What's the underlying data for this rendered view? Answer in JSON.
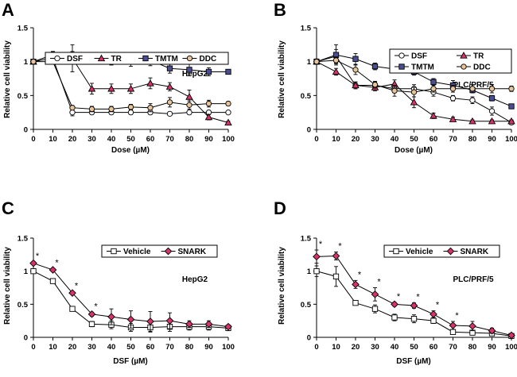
{
  "chart_data": [
    {
      "panel": "A",
      "type": "line",
      "xlabel": "Dose (µM)",
      "ylabel": "Relative cell viability",
      "cell_label": "HepG2",
      "legend_layout": "row",
      "xlim": [
        0,
        100
      ],
      "ylim": [
        0,
        1.5
      ],
      "x_ticks": [
        0,
        10,
        20,
        30,
        40,
        50,
        60,
        70,
        80,
        90,
        100
      ],
      "y_ticks": [
        0,
        0.5,
        1,
        1.5
      ],
      "y_tick_labels": [
        "0",
        "0.5",
        "1",
        "1.5"
      ],
      "x": [
        0,
        10,
        20,
        30,
        40,
        50,
        60,
        70,
        80,
        90,
        100
      ],
      "series": [
        {
          "name": "DSF",
          "marker": "circle",
          "fill": "#ffffff",
          "values": [
            1.0,
            1.05,
            0.25,
            0.25,
            0.25,
            0.25,
            0.25,
            0.23,
            0.25,
            0.25,
            0.25
          ],
          "errors": [
            0.02,
            0.03,
            0.05,
            0.03,
            0.03,
            0.03,
            0.03,
            0.02,
            0.03,
            0.03,
            0.02
          ]
        },
        {
          "name": "TR",
          "marker": "triangle",
          "fill": "#d6336c",
          "values": [
            1.0,
            1.1,
            1.05,
            0.6,
            0.6,
            0.6,
            0.68,
            0.63,
            0.48,
            0.18,
            0.1
          ],
          "errors": [
            0.03,
            0.05,
            0.2,
            0.08,
            0.07,
            0.07,
            0.08,
            0.06,
            0.1,
            0.04,
            0.02
          ]
        },
        {
          "name": "TMTM",
          "marker": "square",
          "fill": "#4b4e8f",
          "values": [
            1.0,
            1.1,
            1.1,
            1.05,
            1.0,
            1.0,
            1.02,
            0.9,
            0.88,
            0.85,
            0.85
          ],
          "errors": [
            0.03,
            0.05,
            0.05,
            0.06,
            0.05,
            0.07,
            0.08,
            0.07,
            0.09,
            0.06,
            0.02
          ]
        },
        {
          "name": "DDC",
          "marker": "circle",
          "fill": "#e8c49a",
          "values": [
            1.0,
            1.0,
            0.32,
            0.3,
            0.3,
            0.33,
            0.32,
            0.4,
            0.36,
            0.38,
            0.38
          ],
          "errors": [
            0.02,
            0.03,
            0.03,
            0.04,
            0.04,
            0.04,
            0.06,
            0.07,
            0.06,
            0.05,
            0.03
          ]
        }
      ]
    },
    {
      "panel": "B",
      "type": "line",
      "xlabel": "Dose (µM)",
      "ylabel": "Relative cell viability",
      "cell_label": "PLC/PRF/5",
      "legend_layout": "grid2",
      "xlim": [
        0,
        100
      ],
      "ylim": [
        0,
        1.5
      ],
      "x_ticks": [
        0,
        10,
        20,
        30,
        40,
        50,
        60,
        70,
        80,
        90,
        100
      ],
      "y_ticks": [
        0,
        0.5,
        1,
        1.5
      ],
      "y_tick_labels": [
        "0",
        "0.5",
        "1",
        "1.5"
      ],
      "x": [
        0,
        10,
        20,
        30,
        40,
        50,
        60,
        70,
        80,
        90,
        100
      ],
      "series": [
        {
          "name": "DSF",
          "marker": "circle",
          "fill": "#ffffff",
          "values": [
            1.0,
            1.08,
            0.65,
            0.65,
            0.6,
            0.6,
            0.55,
            0.46,
            0.43,
            0.27,
            0.1
          ],
          "errors": [
            0.03,
            0.1,
            0.05,
            0.05,
            0.06,
            0.06,
            0.06,
            0.04,
            0.05,
            0.06,
            0.03
          ]
        },
        {
          "name": "TR",
          "marker": "triangle",
          "fill": "#d6336c",
          "values": [
            1.0,
            0.85,
            0.65,
            0.62,
            0.67,
            0.4,
            0.2,
            0.15,
            0.12,
            0.12,
            0.12
          ],
          "errors": [
            0.04,
            0.05,
            0.05,
            0.05,
            0.06,
            0.08,
            0.04,
            0.03,
            0.02,
            0.02,
            0.02
          ]
        },
        {
          "name": "TMTM",
          "marker": "square",
          "fill": "#4b4e8f",
          "values": [
            1.0,
            1.1,
            1.04,
            0.93,
            0.89,
            0.85,
            0.7,
            0.65,
            0.58,
            0.46,
            0.34
          ],
          "errors": [
            0.03,
            0.15,
            0.08,
            0.05,
            0.05,
            0.05,
            0.05,
            0.07,
            0.04,
            0.04,
            0.03
          ]
        },
        {
          "name": "DDC",
          "marker": "circle",
          "fill": "#e8c49a",
          "values": [
            1.0,
            1.02,
            0.88,
            0.66,
            0.57,
            0.55,
            0.6,
            0.6,
            0.6,
            0.6,
            0.6
          ],
          "errors": [
            0.03,
            0.05,
            0.07,
            0.05,
            0.08,
            0.07,
            0.05,
            0.05,
            0.06,
            0.06,
            0.04
          ]
        }
      ]
    },
    {
      "panel": "C",
      "type": "line",
      "xlabel": "DSF (µM)",
      "ylabel": "Relative cell viability",
      "cell_label": "HepG2",
      "legend_layout": "row",
      "xlim": [
        0,
        100
      ],
      "ylim": [
        0,
        1.5
      ],
      "x_ticks": [
        0,
        10,
        20,
        30,
        40,
        50,
        60,
        70,
        80,
        90,
        100
      ],
      "y_ticks": [
        0,
        0.5,
        1,
        1.5
      ],
      "y_tick_labels": [
        "0",
        "0.5",
        "1",
        "1.5"
      ],
      "x": [
        0,
        10,
        20,
        30,
        40,
        50,
        60,
        70,
        80,
        90,
        100
      ],
      "significance_marker": "*",
      "significance_x": [
        0,
        10,
        20,
        30
      ],
      "series": [
        {
          "name": "Vehicle",
          "marker": "square",
          "fill": "#ffffff",
          "values": [
            1.0,
            0.85,
            0.43,
            0.2,
            0.19,
            0.15,
            0.15,
            0.16,
            0.16,
            0.16,
            0.14
          ],
          "errors": [
            0.02,
            0.02,
            0.02,
            0.04,
            0.06,
            0.06,
            0.07,
            0.07,
            0.05,
            0.05,
            0.04
          ]
        },
        {
          "name": "SNARK",
          "marker": "diamond",
          "fill": "#d6336c",
          "values": [
            1.12,
            1.02,
            0.67,
            0.35,
            0.31,
            0.27,
            0.24,
            0.25,
            0.2,
            0.2,
            0.16
          ],
          "errors": [
            0.02,
            0.02,
            0.02,
            0.03,
            0.12,
            0.13,
            0.15,
            0.12,
            0.05,
            0.05,
            0.03
          ]
        }
      ]
    },
    {
      "panel": "D",
      "type": "line",
      "xlabel": "DSF (µM)",
      "ylabel": "Relative cell viability",
      "cell_label": "PLC/PRF/5",
      "legend_layout": "row",
      "xlim": [
        0,
        100
      ],
      "ylim": [
        0,
        1.5
      ],
      "x_ticks": [
        0,
        10,
        20,
        30,
        40,
        50,
        60,
        70,
        80,
        90,
        100
      ],
      "y_ticks": [
        0,
        0.5,
        1,
        1.5
      ],
      "y_tick_labels": [
        "0",
        "0.5",
        "1",
        "1.5"
      ],
      "x": [
        0,
        10,
        20,
        30,
        40,
        50,
        60,
        70,
        80,
        90,
        100
      ],
      "significance_marker": "*",
      "significance_x": [
        0,
        10,
        20,
        30,
        40,
        50,
        60,
        70
      ],
      "series": [
        {
          "name": "Vehicle",
          "marker": "square",
          "fill": "#ffffff",
          "values": [
            1.0,
            0.92,
            0.52,
            0.43,
            0.3,
            0.28,
            0.25,
            0.08,
            0.07,
            0.06,
            0.02
          ],
          "errors": [
            0.08,
            0.15,
            0.03,
            0.06,
            0.05,
            0.06,
            0.04,
            0.03,
            0.03,
            0.02,
            0.02
          ]
        },
        {
          "name": "SNARK",
          "marker": "diamond",
          "fill": "#d6336c",
          "values": [
            1.22,
            1.23,
            0.8,
            0.65,
            0.5,
            0.48,
            0.35,
            0.18,
            0.17,
            0.1,
            0.03
          ],
          "errors": [
            0.1,
            0.06,
            0.06,
            0.1,
            0.03,
            0.04,
            0.05,
            0.06,
            0.07,
            0.04,
            0.02
          ]
        }
      ]
    }
  ]
}
